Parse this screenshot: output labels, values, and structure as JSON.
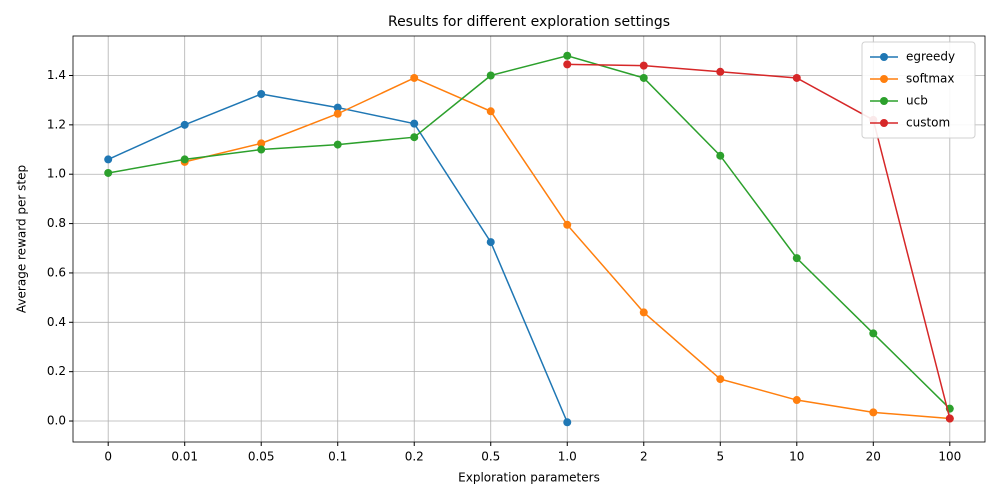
{
  "chart_data": {
    "type": "line",
    "title": "Results for different exploration settings",
    "xlabel": "Exploration parameters",
    "ylabel": "Average reward per step",
    "categories": [
      "0",
      "0.01",
      "0.05",
      "0.1",
      "0.2",
      "0.5",
      "1.0",
      "2",
      "5",
      "10",
      "20",
      "100"
    ],
    "series": [
      {
        "name": "egreedy",
        "color": "#1f77b4",
        "values": [
          1.06,
          1.2,
          1.325,
          1.27,
          1.205,
          0.725,
          -0.005,
          null,
          null,
          null,
          null,
          null
        ]
      },
      {
        "name": "softmax",
        "color": "#ff7f0e",
        "values": [
          null,
          1.05,
          1.125,
          1.245,
          1.39,
          1.255,
          0.795,
          0.44,
          0.17,
          0.085,
          0.035,
          0.01
        ]
      },
      {
        "name": "ucb",
        "color": "#2ca02c",
        "values": [
          1.005,
          1.06,
          1.1,
          1.12,
          1.15,
          1.4,
          1.48,
          1.39,
          1.075,
          0.66,
          0.355,
          0.05
        ]
      },
      {
        "name": "custom",
        "color": "#d62728",
        "values": [
          null,
          null,
          null,
          null,
          null,
          null,
          1.445,
          1.44,
          1.415,
          1.39,
          1.22,
          0.01
        ]
      }
    ],
    "ylim": [
      -0.085,
      1.56
    ],
    "yticks": [
      {
        "value": 0,
        "label": "0.0"
      },
      0.2,
      0.4,
      0.6,
      0.8,
      {
        "value": 1,
        "label": "1.0"
      },
      1.2,
      1.4
    ],
    "grid": true,
    "legend": "upper right"
  }
}
